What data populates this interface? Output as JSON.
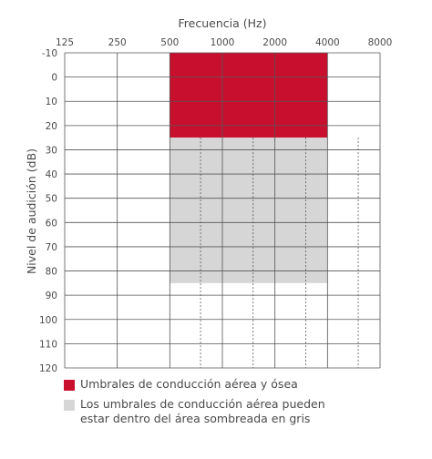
{
  "chart_data": {
    "type": "area",
    "xlabel": "Frecuencia (Hz)",
    "ylabel": "Nivel de audición (dB)",
    "x_ticks": [
      "125",
      "250",
      "500",
      "1000",
      "2000",
      "4000",
      "8000"
    ],
    "x_scale": "log2",
    "x_intermediate_dashed": [
      "750",
      "1500",
      "3000",
      "6000"
    ],
    "y_ticks": [
      "-10",
      "0",
      "10",
      "20",
      "30",
      "40",
      "50",
      "60",
      "70",
      "80",
      "90",
      "100",
      "110",
      "120"
    ],
    "ylim": [
      -10,
      120
    ],
    "y_inverted": true,
    "regions": [
      {
        "name": "Umbrales de conducción aérea y ósea",
        "x": [
          500,
          4000
        ],
        "y": [
          -10,
          25
        ],
        "color": "#c8102e"
      },
      {
        "name": "Los umbrales de conducción aérea pueden estar dentro del área sombreada en gris",
        "x": [
          500,
          4000
        ],
        "y": [
          25,
          85
        ],
        "color": "#d6d6d6"
      }
    ],
    "grid": true,
    "legend_position": "bottom"
  }
}
